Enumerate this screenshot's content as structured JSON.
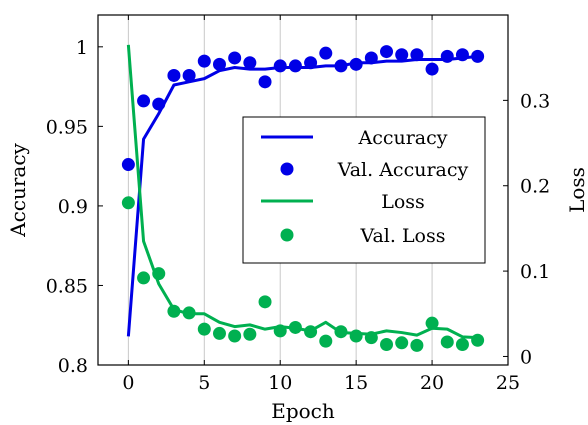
{
  "chart_data": {
    "type": "line",
    "xlabel": "Epoch",
    "ylabel_left": "Accuracy",
    "ylabel_right": "Loss",
    "xlim": [
      -2,
      25
    ],
    "ylim_left": [
      0.8,
      1.02
    ],
    "ylim_right": [
      -0.01,
      0.4
    ],
    "xticks": [
      "0",
      "5",
      "10",
      "15",
      "20",
      "25"
    ],
    "yticks_left": [
      "0.8",
      "0.85",
      "0.9",
      "0.95",
      "1"
    ],
    "yticks_right": [
      "0",
      "0.1",
      "0.2",
      "0.3"
    ],
    "grid": "vertical",
    "legend_position": "center-right",
    "colors": {
      "accuracy": "#0000e6",
      "loss": "#00b050"
    },
    "series": [
      {
        "name": "Accuracy",
        "kind": "line",
        "axis": "left",
        "x": [
          0,
          1,
          2,
          3,
          4,
          5,
          6,
          7,
          8,
          9,
          10,
          11,
          12,
          13,
          14,
          15,
          16,
          17,
          18,
          19,
          20,
          21,
          22,
          23
        ],
        "y": [
          0.818,
          0.942,
          0.958,
          0.976,
          0.978,
          0.98,
          0.985,
          0.987,
          0.986,
          0.986,
          0.987,
          0.987,
          0.987,
          0.988,
          0.988,
          0.99,
          0.99,
          0.991,
          0.991,
          0.992,
          0.992,
          0.992,
          0.993,
          0.994
        ]
      },
      {
        "name": "Val. Accuracy",
        "kind": "scatter",
        "axis": "left",
        "x": [
          0,
          1,
          2,
          3,
          4,
          5,
          6,
          7,
          8,
          9,
          10,
          11,
          12,
          13,
          14,
          15,
          16,
          17,
          18,
          19,
          20,
          21,
          22,
          23
        ],
        "y": [
          0.926,
          0.966,
          0.964,
          0.982,
          0.982,
          0.991,
          0.989,
          0.993,
          0.99,
          0.978,
          0.988,
          0.988,
          0.99,
          0.996,
          0.988,
          0.989,
          0.993,
          0.997,
          0.995,
          0.995,
          0.986,
          0.994,
          0.995,
          0.994
        ]
      },
      {
        "name": "Loss",
        "kind": "line",
        "axis": "right",
        "x": [
          0,
          1,
          2,
          3,
          4,
          5,
          6,
          7,
          8,
          9,
          10,
          11,
          12,
          13,
          14,
          15,
          16,
          17,
          18,
          19,
          20,
          21,
          22,
          23
        ],
        "y": [
          0.365,
          0.135,
          0.085,
          0.055,
          0.05,
          0.05,
          0.04,
          0.035,
          0.037,
          0.032,
          0.035,
          0.033,
          0.03,
          0.04,
          0.028,
          0.027,
          0.026,
          0.03,
          0.028,
          0.025,
          0.033,
          0.032,
          0.023,
          0.022
        ]
      },
      {
        "name": "Val. Loss",
        "kind": "scatter",
        "axis": "right",
        "x": [
          0,
          1,
          2,
          3,
          4,
          5,
          6,
          7,
          8,
          9,
          10,
          11,
          12,
          13,
          14,
          15,
          16,
          17,
          18,
          19,
          20,
          21,
          22,
          23
        ],
        "y": [
          0.18,
          0.092,
          0.097,
          0.053,
          0.051,
          0.032,
          0.027,
          0.024,
          0.026,
          0.064,
          0.03,
          0.034,
          0.029,
          0.018,
          0.029,
          0.024,
          0.022,
          0.014,
          0.016,
          0.013,
          0.039,
          0.017,
          0.014,
          0.019
        ]
      }
    ]
  }
}
